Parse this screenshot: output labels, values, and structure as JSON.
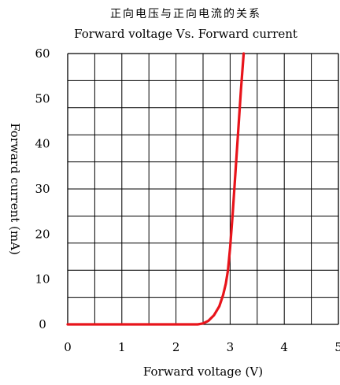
{
  "chart_data": {
    "type": "line",
    "title": "正向电压与正向电流的关系",
    "subtitle": "Forward voltage Vs. Forward current",
    "xlabel": "Forward voltage (V)",
    "ylabel": "Forward current (mA)",
    "xlim": [
      0,
      5
    ],
    "ylim": [
      0,
      60
    ],
    "grid": true,
    "x_ticks": [
      "0",
      "1",
      "2",
      "3",
      "4",
      "5"
    ],
    "y_ticks": [
      "0",
      "10",
      "20",
      "30",
      "40",
      "50",
      "60"
    ],
    "series": [
      {
        "color": "#e8141b",
        "x": [
          0,
          0.5,
          1.0,
          1.5,
          2.0,
          2.4,
          2.5,
          2.6,
          2.7,
          2.8,
          2.87,
          2.92,
          2.96,
          3.0,
          3.05,
          3.1,
          3.15,
          3.2,
          3.25
        ],
        "y": [
          0,
          0,
          0,
          0,
          0,
          0,
          0.2,
          0.8,
          2,
          4,
          6.5,
          9,
          12,
          17,
          25,
          34,
          43,
          52,
          60
        ]
      }
    ]
  }
}
